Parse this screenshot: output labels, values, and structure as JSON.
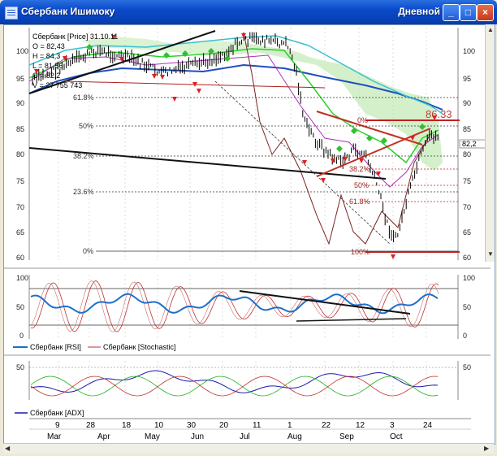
{
  "window": {
    "title": "Сбербанк Ишимоку",
    "mode": "Дневной",
    "controls": {
      "minimize": "_",
      "maximize": "□",
      "close": "×"
    }
  },
  "main_chart": {
    "legend_title": "Сбербанк [Price] 31.10.11",
    "legend_lines": [
      "O = 82,43",
      "H = 84,3",
      "L = 81,56",
      "C = 82,2",
      "V = 27 755 743"
    ],
    "y_ticks": [
      "100",
      "95",
      "90",
      "85",
      "80",
      "75",
      "70",
      "65",
      "60"
    ],
    "last_price_label": "82,2",
    "resistance_label": "86.33",
    "fib_left": [
      "61.8%",
      "50%",
      "38.2%",
      "23.6%",
      "0%"
    ],
    "fib_right": [
      "0%",
      "38.2%",
      "50%",
      "61.8%",
      "100%"
    ]
  },
  "oscillator": {
    "y_ticks": [
      "100",
      "50",
      "0"
    ],
    "legend": [
      "Сбербанк [RSI]",
      "Сбербанк [Stochastic]"
    ]
  },
  "adx_panel": {
    "y_ticks": [
      "50"
    ],
    "legend": [
      "Сбербанк [ADX]"
    ]
  },
  "x_axis": {
    "days": [
      "9",
      "28",
      "18",
      "10",
      "30",
      "20",
      "11",
      "1",
      "22",
      "12",
      "3",
      "24"
    ],
    "months": [
      "Mar",
      "Apr",
      "May",
      "Jun",
      "Jul",
      "Aug",
      "Sep",
      "Oct"
    ]
  },
  "colors": {
    "titlebar": "#0a49c8",
    "rsi": "#1f6fc8",
    "stochastic": "#c03030",
    "adx": "#1a1ab0",
    "cloud": "#9ad78a",
    "sell_marker": "#e02020",
    "buy_marker": "#30c030"
  }
}
